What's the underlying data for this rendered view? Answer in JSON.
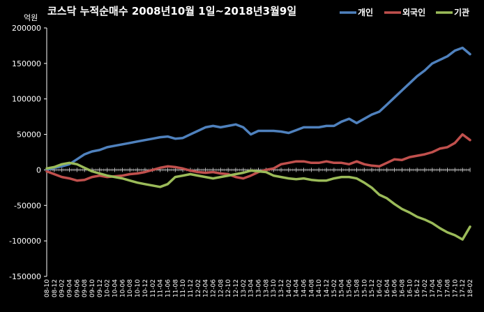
{
  "chart_data": {
    "type": "line",
    "title": "코스닥 누적순매수 2008년10월 1일~2018년3월9일",
    "ylabel": "억원",
    "ylim": [
      -150000,
      200000
    ],
    "yticks": [
      200000,
      150000,
      100000,
      50000,
      0,
      -50000,
      -100000,
      -150000
    ],
    "grid": false,
    "legend_position": "top-right",
    "x": [
      "08-10",
      "08-12",
      "09-02",
      "09-04",
      "09-06",
      "09-08",
      "09-10",
      "09-12",
      "10-02",
      "10-04",
      "10-06",
      "10-08",
      "10-10",
      "10-12",
      "11-02",
      "11-04",
      "11-06",
      "11-08",
      "11-10",
      "11-12",
      "12-02",
      "12-04",
      "12-06",
      "12-08",
      "12-10",
      "12-12",
      "13-02",
      "13-04",
      "13-06",
      "13-08",
      "13-10",
      "13-12",
      "14-02",
      "14-04",
      "14-06",
      "14-08",
      "14-10",
      "14-12",
      "15-02",
      "15-04",
      "15-06",
      "15-08",
      "15-10",
      "15-12",
      "16-02",
      "16-04",
      "16-06",
      "16-08",
      "16-10",
      "16-12",
      "17-02",
      "17-04",
      "17-06",
      "17-08",
      "17-10",
      "17-12",
      "18-02"
    ],
    "series": [
      {
        "name": "개인",
        "color": "#4f81bd",
        "values": [
          0,
          3000,
          5000,
          8000,
          15000,
          22000,
          26000,
          28000,
          32000,
          34000,
          36000,
          38000,
          40000,
          42000,
          44000,
          46000,
          47000,
          44000,
          45000,
          50000,
          55000,
          60000,
          62000,
          60000,
          62000,
          64000,
          60000,
          50000,
          55000,
          55000,
          55000,
          54000,
          52000,
          56000,
          60000,
          60000,
          60000,
          62000,
          62000,
          68000,
          72000,
          66000,
          72000,
          78000,
          82000,
          92000,
          102000,
          112000,
          122000,
          132000,
          140000,
          150000,
          155000,
          160000,
          168000,
          172000,
          163000
        ]
      },
      {
        "name": "외국인",
        "color": "#c0504d",
        "values": [
          -2000,
          -6000,
          -10000,
          -12000,
          -15000,
          -14000,
          -10000,
          -8000,
          -10000,
          -9000,
          -8000,
          -6000,
          -5000,
          -3000,
          0,
          3000,
          5000,
          4000,
          2000,
          -1000,
          -3000,
          -4000,
          -3000,
          -5000,
          -6000,
          -10000,
          -12000,
          -8000,
          -3000,
          0,
          2000,
          8000,
          10000,
          12000,
          12000,
          10000,
          10000,
          12000,
          10000,
          10000,
          8000,
          12000,
          8000,
          6000,
          5000,
          10000,
          15000,
          14000,
          18000,
          20000,
          22000,
          25000,
          30000,
          32000,
          38000,
          50000,
          42000
        ]
      },
      {
        "name": "기관",
        "color": "#9bbb59",
        "values": [
          2000,
          4000,
          8000,
          10000,
          8000,
          3000,
          -2000,
          -5000,
          -8000,
          -10000,
          -12000,
          -15000,
          -18000,
          -20000,
          -22000,
          -24000,
          -20000,
          -10000,
          -8000,
          -6000,
          -8000,
          -10000,
          -12000,
          -10000,
          -8000,
          -6000,
          -4000,
          -1000,
          -2000,
          -3000,
          -8000,
          -10000,
          -12000,
          -13000,
          -12000,
          -14000,
          -15000,
          -15000,
          -12000,
          -10000,
          -10000,
          -12000,
          -18000,
          -25000,
          -35000,
          -40000,
          -48000,
          -55000,
          -60000,
          -66000,
          -70000,
          -75000,
          -82000,
          -88000,
          -92000,
          -98000,
          -80000
        ]
      }
    ]
  }
}
